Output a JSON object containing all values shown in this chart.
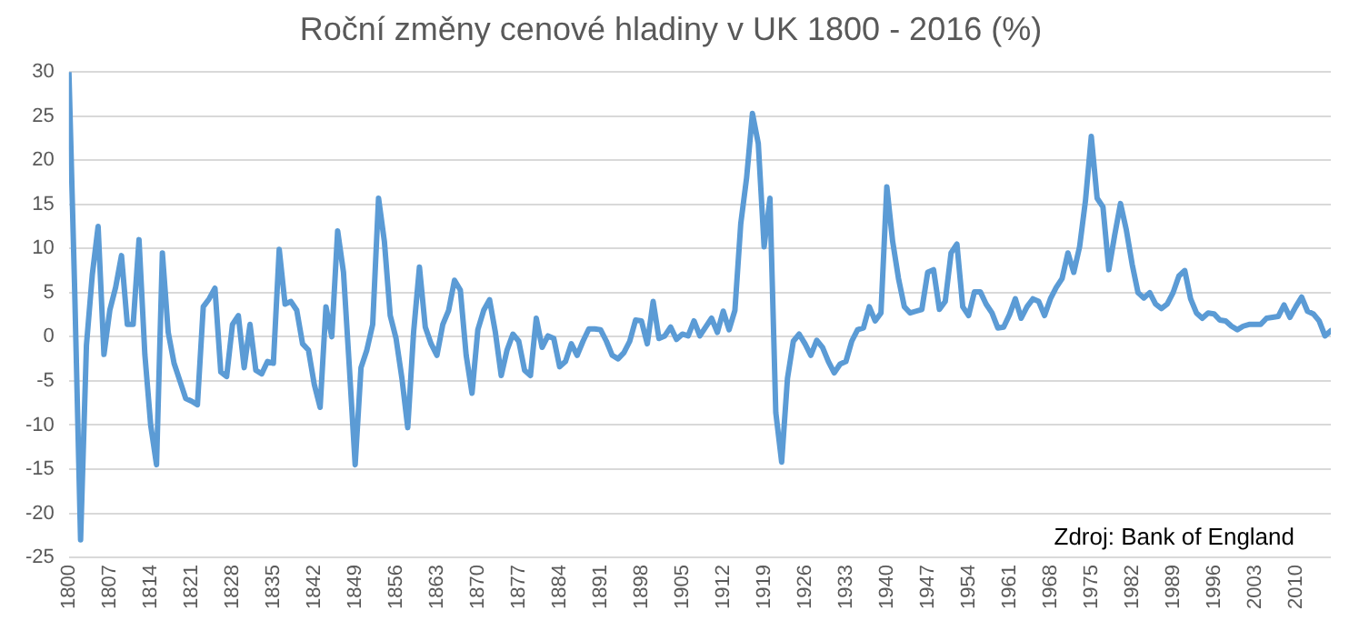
{
  "chart_data": {
    "type": "line",
    "title": "Roční změny cenové hladiny v UK 1800 - 2016 (%)",
    "annotations": [
      "Zdroj: Bank of England"
    ],
    "x": [
      1800,
      1801,
      1802,
      1803,
      1804,
      1805,
      1806,
      1807,
      1808,
      1809,
      1810,
      1811,
      1812,
      1813,
      1814,
      1815,
      1816,
      1817,
      1818,
      1819,
      1820,
      1821,
      1822,
      1823,
      1824,
      1825,
      1826,
      1827,
      1828,
      1829,
      1830,
      1831,
      1832,
      1833,
      1834,
      1835,
      1836,
      1837,
      1838,
      1839,
      1840,
      1841,
      1842,
      1843,
      1844,
      1845,
      1846,
      1847,
      1848,
      1849,
      1850,
      1851,
      1852,
      1853,
      1854,
      1855,
      1856,
      1857,
      1858,
      1859,
      1860,
      1861,
      1862,
      1863,
      1864,
      1865,
      1866,
      1867,
      1868,
      1869,
      1870,
      1871,
      1872,
      1873,
      1874,
      1875,
      1876,
      1877,
      1878,
      1879,
      1880,
      1881,
      1882,
      1883,
      1884,
      1885,
      1886,
      1887,
      1888,
      1889,
      1890,
      1891,
      1892,
      1893,
      1894,
      1895,
      1896,
      1897,
      1898,
      1899,
      1900,
      1901,
      1902,
      1903,
      1904,
      1905,
      1906,
      1907,
      1908,
      1909,
      1910,
      1911,
      1912,
      1913,
      1914,
      1915,
      1916,
      1917,
      1918,
      1919,
      1920,
      1921,
      1922,
      1923,
      1924,
      1925,
      1926,
      1927,
      1928,
      1929,
      1930,
      1931,
      1932,
      1933,
      1934,
      1935,
      1936,
      1937,
      1938,
      1939,
      1940,
      1941,
      1942,
      1943,
      1944,
      1945,
      1946,
      1947,
      1948,
      1949,
      1950,
      1951,
      1952,
      1953,
      1954,
      1955,
      1956,
      1957,
      1958,
      1959,
      1960,
      1961,
      1962,
      1963,
      1964,
      1965,
      1966,
      1967,
      1968,
      1969,
      1970,
      1971,
      1972,
      1973,
      1974,
      1975,
      1976,
      1977,
      1978,
      1979,
      1980,
      1981,
      1982,
      1983,
      1984,
      1985,
      1986,
      1987,
      1988,
      1989,
      1990,
      1991,
      1992,
      1993,
      1994,
      1995,
      1996,
      1997,
      1998,
      1999,
      2000,
      2001,
      2002,
      2003,
      2004,
      2005,
      2006,
      2007,
      2008,
      2009,
      2010,
      2011,
      2012,
      2013,
      2014,
      2015,
      2016
    ],
    "series": [
      {
        "color": "#5b9bd5",
        "values": [
          30,
          5,
          -23,
          -1,
          7,
          12.5,
          -2,
          3,
          5.6,
          9.2,
          1.4,
          1.4,
          11,
          -2,
          -10,
          -14.5,
          9.5,
          0.5,
          -3,
          -5,
          -7,
          -7.3,
          -7.7,
          3.4,
          4.3,
          5.5,
          -4,
          -4.5,
          1.4,
          2.4,
          -3.5,
          1.4,
          -3.8,
          -4.2,
          -2.8,
          -3,
          9.9,
          3.7,
          4,
          3,
          -0.8,
          -1.5,
          -5.4,
          -8,
          3.4,
          0,
          12,
          7.3,
          -3.4,
          -14.5,
          -3.5,
          -1.5,
          1.4,
          15.7,
          10.8,
          2.4,
          -0.2,
          -4.7,
          -10.3,
          0.5,
          7.9,
          1.1,
          -0.8,
          -2.1,
          1.4,
          3,
          6.4,
          5.3,
          -2.1,
          -6.4,
          0.8,
          3,
          4.2,
          0.5,
          -4.4,
          -1.5,
          0.3,
          -0.5,
          -3.8,
          -4.4,
          2.1,
          -1.2,
          0.1,
          -0.2,
          -3.4,
          -2.8,
          -0.8,
          -2.1,
          -0.5,
          0.9,
          0.9,
          0.8,
          -0.5,
          -2.1,
          -2.5,
          -1.8,
          -0.5,
          1.9,
          1.8,
          -0.8,
          4,
          -0.2,
          0.1,
          1.1,
          -0.3,
          0.3,
          0.1,
          1.8,
          0.1,
          1.1,
          2.1,
          0.5,
          2.9,
          0.8,
          3,
          12.8,
          18,
          25.3,
          21.9,
          10.2,
          15.7,
          -8.6,
          -14.2,
          -4.7,
          -0.5,
          0.3,
          -0.8,
          -2.1,
          -0.4,
          -1.2,
          -2.8,
          -4.1,
          -3.1,
          -2.8,
          -0.5,
          0.8,
          1,
          3.4,
          1.8,
          2.7,
          17,
          10.8,
          6.6,
          3.4,
          2.7,
          2.9,
          3.1,
          7.3,
          7.6,
          3.1,
          4,
          9.5,
          10.5,
          3.4,
          2.4,
          5.1,
          5.1,
          3.7,
          2.7,
          1,
          1.1,
          2.5,
          4.3,
          2.1,
          3.4,
          4.3,
          4,
          2.4,
          4.3,
          5.6,
          6.6,
          9.5,
          7.3,
          10.2,
          15.4,
          22.7,
          15.7,
          14.7,
          7.6,
          11.5,
          15.1,
          12.1,
          8.2,
          5,
          4.4,
          5,
          3.7,
          3.2,
          3.7,
          5,
          6.9,
          7.5,
          4.3,
          2.7,
          2.1,
          2.7,
          2.6,
          1.9,
          1.8,
          1.2,
          0.8,
          1.2,
          1.4,
          1.4,
          1.4,
          2.1,
          2.2,
          2.3,
          3.6,
          2.2,
          3.4,
          4.5,
          2.9,
          2.6,
          1.8,
          0.1,
          0.7
        ]
      }
    ],
    "xlim": [
      1800,
      2016
    ],
    "xticks": [
      1800,
      1807,
      1814,
      1821,
      1828,
      1835,
      1842,
      1849,
      1856,
      1863,
      1870,
      1877,
      1884,
      1891,
      1898,
      1905,
      1912,
      1919,
      1926,
      1933,
      1940,
      1947,
      1954,
      1961,
      1968,
      1975,
      1982,
      1989,
      1996,
      2003,
      2010
    ],
    "ylim": [
      -25,
      30
    ],
    "yticks": [
      -25,
      -20,
      -15,
      -10,
      -5,
      0,
      5,
      10,
      15,
      20,
      25,
      30
    ],
    "grid": "y",
    "legend": false,
    "marker": "none",
    "line_style": "solid"
  }
}
